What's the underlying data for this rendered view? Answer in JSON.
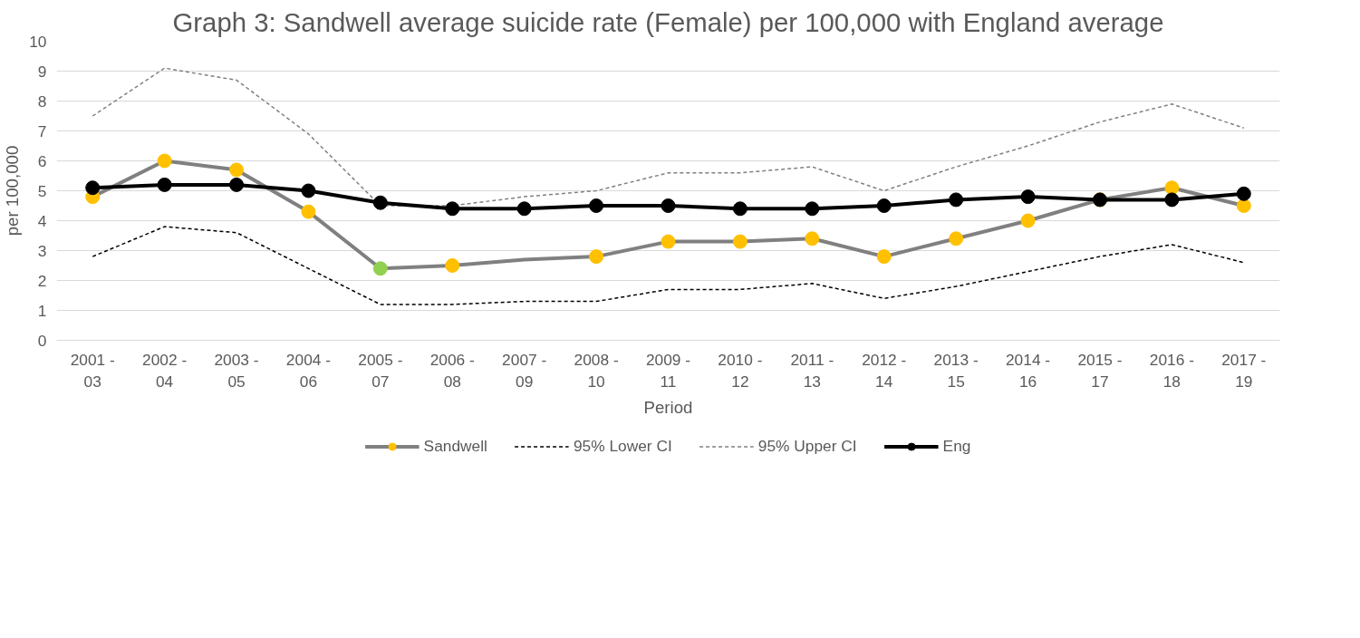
{
  "chart_data": {
    "type": "line",
    "title": "Graph 3: Sandwell average suicide rate (Female) per 100,000 with England average",
    "xlabel": "Period",
    "ylabel": "per 100,000",
    "categories": [
      "2001 - 03",
      "2002 - 04",
      "2003 - 05",
      "2004 - 06",
      "2005 - 07",
      "2006 - 08",
      "2007 - 09",
      "2008 - 10",
      "2009 - 11",
      "2010 - 12",
      "2011 - 13",
      "2012 - 14",
      "2013 - 15",
      "2014 - 16",
      "2015 - 17",
      "2016 - 18",
      "2017 - 19"
    ],
    "series": [
      {
        "name": "Sandwell",
        "color": "#808080",
        "marker": "circle",
        "line_style": "solid",
        "colors": [
          "#ffc000",
          "#ffc000",
          "#ffc000",
          "#ffc000",
          "#92d050",
          "#ffc000",
          null,
          "#ffc000",
          "#ffc000",
          "#ffc000",
          "#ffc000",
          "#ffc000",
          "#ffc000",
          "#ffc000",
          "#ffc000",
          "#ffc000",
          "#ffc000"
        ],
        "values": [
          4.8,
          6.0,
          5.7,
          4.3,
          2.4,
          2.5,
          2.7,
          2.8,
          3.3,
          3.3,
          3.4,
          2.8,
          3.4,
          4.0,
          4.7,
          5.1,
          4.5
        ]
      },
      {
        "name": "95% Lower CI",
        "color": "#000000",
        "marker": "none",
        "line_style": "dashed",
        "values": [
          2.8,
          3.8,
          3.6,
          2.4,
          1.2,
          1.2,
          1.3,
          1.3,
          1.7,
          1.7,
          1.9,
          1.4,
          1.8,
          2.3,
          2.8,
          3.2,
          2.6
        ]
      },
      {
        "name": "95% Upper CI",
        "color": "#808080",
        "marker": "none",
        "line_style": "dashed",
        "values": [
          7.5,
          9.1,
          8.7,
          6.9,
          4.5,
          4.5,
          4.8,
          5.0,
          5.6,
          5.6,
          5.8,
          5.0,
          5.8,
          6.5,
          7.3,
          7.9,
          7.1
        ]
      },
      {
        "name": "Eng",
        "color": "#000000",
        "marker": "circle",
        "line_style": "solid",
        "values": [
          5.1,
          5.2,
          5.2,
          5.0,
          4.6,
          4.4,
          4.4,
          4.5,
          4.5,
          4.4,
          4.4,
          4.5,
          4.7,
          4.8,
          4.7,
          4.7,
          4.9
        ]
      }
    ],
    "ylim": [
      0,
      10
    ],
    "yticks": [
      0,
      1,
      2,
      3,
      4,
      5,
      6,
      7,
      8,
      9,
      10
    ],
    "grid": "y",
    "legend": "bottom"
  }
}
